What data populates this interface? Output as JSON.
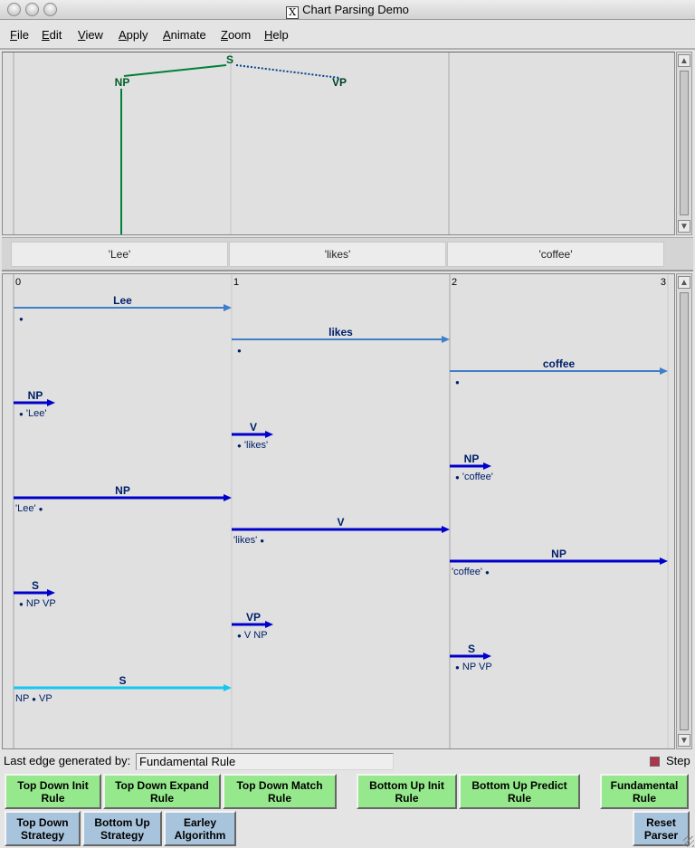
{
  "window": {
    "title": "Chart Parsing Demo"
  },
  "menu": [
    "File",
    "Edit",
    "View",
    "Apply",
    "Animate",
    "Zoom",
    "Help"
  ],
  "tree": {
    "root": "S",
    "left": "NP",
    "right": "VP"
  },
  "sentence": [
    "'Lee'",
    "'likes'",
    "'coffee'"
  ],
  "chart": {
    "positions": [
      "0",
      "1",
      "2",
      "3"
    ],
    "edges": [
      {
        "lhs": "Lee",
        "rhs_before": "",
        "rhs_after": "",
        "start": 0,
        "end": 1,
        "kind": "leaf"
      },
      {
        "lhs": "likes",
        "rhs_before": "",
        "rhs_after": "",
        "start": 1,
        "end": 2,
        "kind": "leaf"
      },
      {
        "lhs": "coffee",
        "rhs_before": "",
        "rhs_after": "",
        "start": 2,
        "end": 3,
        "kind": "leaf"
      },
      {
        "lhs": "NP",
        "rhs_before": "",
        "rhs_after": "'Lee'",
        "start": 0,
        "end": 0,
        "kind": "self"
      },
      {
        "lhs": "V",
        "rhs_before": "",
        "rhs_after": "'likes'",
        "start": 1,
        "end": 1,
        "kind": "self"
      },
      {
        "lhs": "NP",
        "rhs_before": "",
        "rhs_after": "'coffee'",
        "start": 2,
        "end": 2,
        "kind": "self"
      },
      {
        "lhs": "NP",
        "rhs_before": "'Lee'",
        "rhs_after": "",
        "start": 0,
        "end": 1,
        "kind": "complete"
      },
      {
        "lhs": "V",
        "rhs_before": "'likes'",
        "rhs_after": "",
        "start": 1,
        "end": 2,
        "kind": "complete"
      },
      {
        "lhs": "NP",
        "rhs_before": "'coffee'",
        "rhs_after": "",
        "start": 2,
        "end": 3,
        "kind": "complete"
      },
      {
        "lhs": "S",
        "rhs_before": "",
        "rhs_after": "NP VP",
        "start": 0,
        "end": 0,
        "kind": "self"
      },
      {
        "lhs": "VP",
        "rhs_before": "",
        "rhs_after": "V NP",
        "start": 1,
        "end": 1,
        "kind": "self"
      },
      {
        "lhs": "S",
        "rhs_before": "",
        "rhs_after": "NP VP",
        "start": 2,
        "end": 2,
        "kind": "self"
      },
      {
        "lhs": "S",
        "rhs_before": "NP",
        "rhs_after": "VP",
        "start": 0,
        "end": 1,
        "kind": "selected"
      }
    ],
    "colors": {
      "leaf": "#3f7fc8",
      "edge": "#0000cc",
      "selected": "#14c8f0",
      "text": "#00206a"
    }
  },
  "status": {
    "label": "Last edge generated by:",
    "value": "Fundamental Rule",
    "step_label": "Step",
    "step_checked": true
  },
  "buttons": {
    "td_init": "Top Down Init\nRule",
    "td_expand": "Top Down Expand\nRule",
    "td_match": "Top Down Match\nRule",
    "bu_init": "Bottom Up Init\nRule",
    "bu_predict": "Bottom Up Predict\nRule",
    "fundamental": "Fundamental\nRule",
    "td_strategy": "Top Down\nStrategy",
    "bu_strategy": "Bottom Up\nStrategy",
    "earley": "Earley\nAlgorithm",
    "reset": "Reset\nParser"
  }
}
